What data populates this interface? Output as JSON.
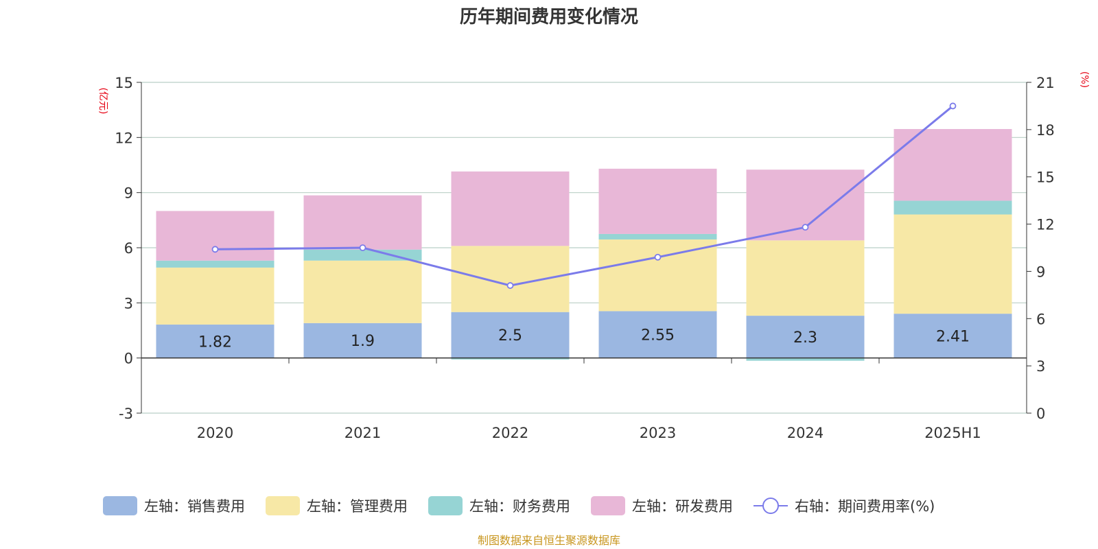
{
  "chart_data": {
    "type": "bar",
    "title": "历年期间费用变化情况",
    "categories": [
      "2020",
      "2021",
      "2022",
      "2023",
      "2024",
      "2025H1"
    ],
    "left_axis": {
      "unit": "(亿元)",
      "ylim": [
        -3,
        15
      ],
      "ticks": [
        -3,
        0,
        3,
        6,
        9,
        12,
        15
      ]
    },
    "right_axis": {
      "unit": "(%)",
      "ylim": [
        0,
        21
      ],
      "ticks": [
        0,
        3,
        6,
        9,
        12,
        15,
        18,
        21
      ]
    },
    "stacked": true,
    "series": [
      {
        "name": "左轴：销售费用",
        "color": "#9bb7e1",
        "values": [
          1.82,
          1.9,
          2.5,
          2.55,
          2.3,
          2.41
        ],
        "labels": [
          "1.82",
          "1.9",
          "2.5",
          "2.55",
          "2.3",
          "2.41"
        ]
      },
      {
        "name": "左轴：管理费用",
        "color": "#f7e8a6",
        "values": [
          3.1,
          3.4,
          3.6,
          3.9,
          4.1,
          5.4
        ]
      },
      {
        "name": "左轴：财务费用",
        "color": "#96d4d4",
        "values": [
          0.38,
          0.6,
          -0.08,
          0.3,
          -0.15,
          0.75
        ]
      },
      {
        "name": "左轴：研发费用",
        "color": "#e8b7d7",
        "values": [
          2.7,
          2.95,
          4.05,
          3.55,
          3.85,
          3.9
        ]
      }
    ],
    "line": {
      "name": "右轴：期间费用率(%)",
      "color": "#7b7bea",
      "values": [
        10.4,
        10.5,
        8.1,
        9.9,
        11.8,
        19.5
      ]
    },
    "grid": true,
    "legend_position": "bottom",
    "source": "制图数据来自恒生聚源数据库"
  }
}
